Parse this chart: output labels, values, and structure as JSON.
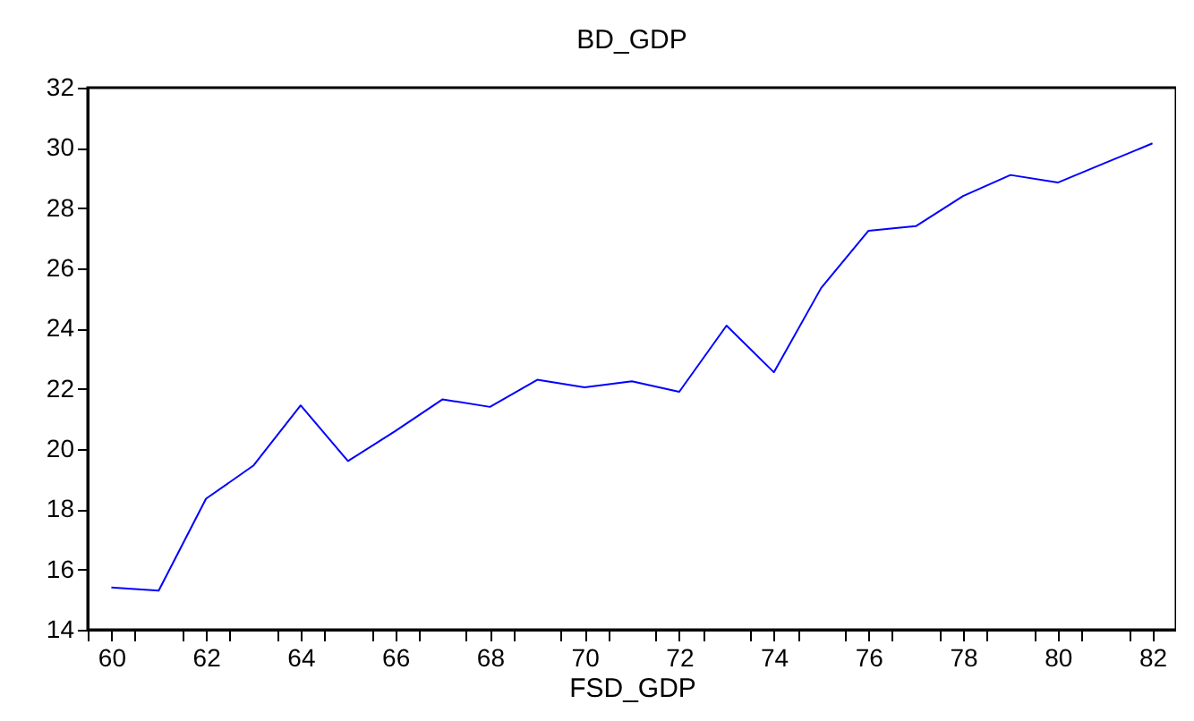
{
  "chart_data": {
    "type": "line",
    "title": "BD_GDP",
    "xlabel": "FSD_GDP",
    "x": [
      60,
      61,
      62,
      63,
      64,
      65,
      66,
      67,
      68,
      69,
      70,
      71,
      72,
      73,
      74,
      75,
      76,
      77,
      78,
      79,
      80,
      81,
      82
    ],
    "series": [
      {
        "color": "#0000ff",
        "values": [
          15.4,
          15.3,
          18.35,
          19.45,
          21.45,
          19.6,
          20.6,
          21.65,
          21.4,
          22.3,
          22.05,
          22.25,
          21.9,
          24.1,
          22.55,
          25.35,
          27.25,
          27.4,
          28.4,
          29.1,
          28.85,
          29.5,
          30.15
        ]
      }
    ],
    "xlim": [
      59.5,
      82.5
    ],
    "xticks": [
      {
        "value": 59.5,
        "label": null
      },
      60,
      {
        "value": 60.5,
        "label": null
      },
      {
        "value": 61.5,
        "label": null
      },
      62,
      {
        "value": 62.5,
        "label": null
      },
      {
        "value": 63.5,
        "label": null
      },
      64,
      {
        "value": 64.5,
        "label": null
      },
      {
        "value": 65.5,
        "label": null
      },
      66,
      {
        "value": 66.5,
        "label": null
      },
      {
        "value": 67.5,
        "label": null
      },
      68,
      {
        "value": 68.5,
        "label": null
      },
      {
        "value": 69.5,
        "label": null
      },
      70,
      {
        "value": 70.5,
        "label": null
      },
      {
        "value": 71.5,
        "label": null
      },
      72,
      {
        "value": 72.5,
        "label": null
      },
      {
        "value": 73.5,
        "label": null
      },
      74,
      {
        "value": 74.5,
        "label": null
      },
      {
        "value": 75.5,
        "label": null
      },
      76,
      {
        "value": 76.5,
        "label": null
      },
      {
        "value": 77.5,
        "label": null
      },
      78,
      {
        "value": 78.5,
        "label": null
      },
      {
        "value": 79.5,
        "label": null
      },
      80,
      {
        "value": 80.5,
        "label": null
      },
      {
        "value": 81.5,
        "label": null
      },
      82,
      {
        "value": 82.5,
        "label": null
      }
    ],
    "ylim": [
      14,
      32
    ],
    "yticks": [
      14,
      16,
      18,
      20,
      22,
      24,
      26,
      28,
      30,
      32
    ],
    "grid": false,
    "marker": "none",
    "line_style": "solid"
  }
}
